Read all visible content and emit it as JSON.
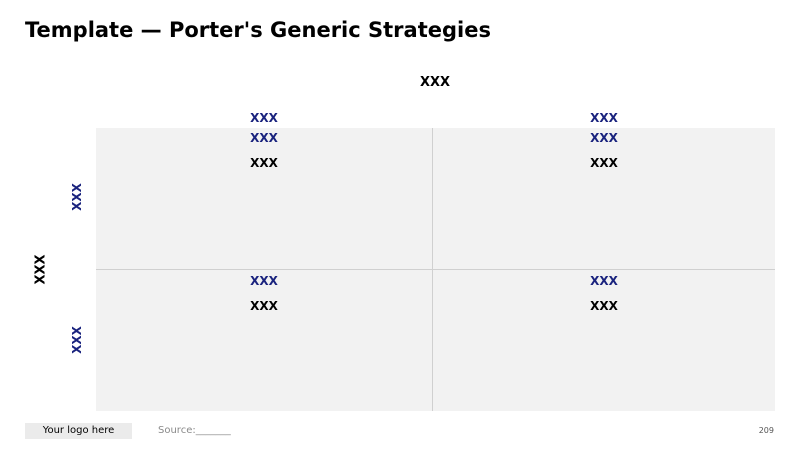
{
  "title": "Template — Porter's Generic Strategies",
  "top_axis_label": "XXX",
  "column_headers": [
    "XXX",
    "XXX"
  ],
  "left_axis_label": "XXX",
  "row_labels": [
    "XXX",
    "XXX"
  ],
  "cells": [
    {
      "title": "XXX",
      "text": "XXX"
    },
    {
      "title": "XXX",
      "text": "XXX"
    },
    {
      "title": "XXX",
      "text": "XXX"
    },
    {
      "title": "XXX",
      "text": "XXX"
    }
  ],
  "footer": {
    "logo": "Your logo here",
    "source": "Source:_______",
    "page_number": "209"
  },
  "colors": {
    "accent": "#1a237e",
    "grid_background": "#f2f2f2",
    "divider": "#d0d0d0"
  }
}
